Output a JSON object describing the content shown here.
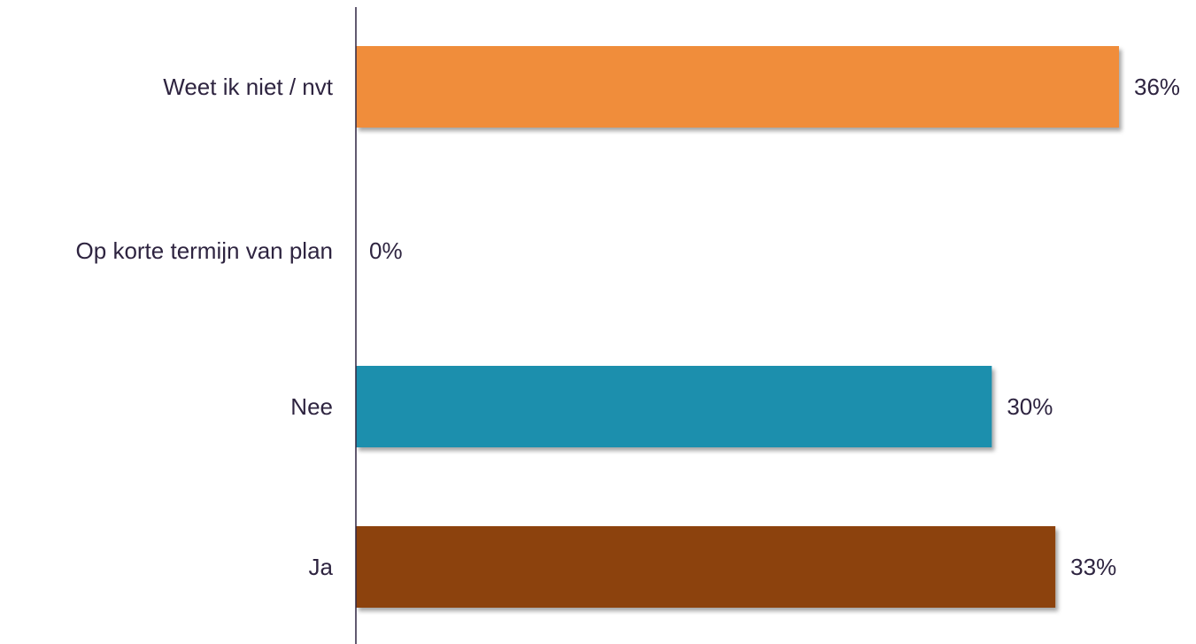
{
  "chart_data": {
    "type": "bar",
    "orientation": "horizontal",
    "categories": [
      "Weet ik niet / nvt",
      "Op korte termijn van plan",
      "Nee",
      "Ja"
    ],
    "values": [
      36,
      0,
      30,
      33
    ],
    "data_labels": [
      "36%",
      "0%",
      "30%",
      "33%"
    ],
    "colors": [
      "#f08d3b",
      "#f08d3b",
      "#1f8fad",
      "#8c4308"
    ],
    "title": "",
    "xlabel": "",
    "ylabel": "",
    "xlim": [
      0,
      38
    ],
    "grid": false,
    "legend": "none"
  }
}
